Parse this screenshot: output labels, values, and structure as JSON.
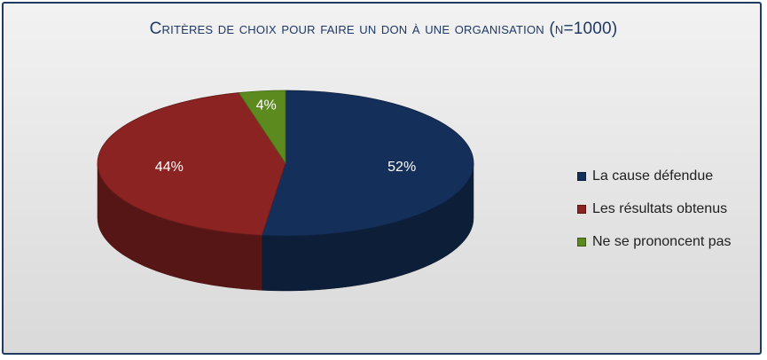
{
  "chart_data": {
    "type": "pie",
    "title": "Critères de choix pour faire un don à une organisation (n=1000)",
    "slices": [
      {
        "label": "La cause défendue",
        "value": 52,
        "display": "52%",
        "color": "#14305a"
      },
      {
        "label": "Les résultats obtenus",
        "value": 44,
        "display": "44%",
        "color": "#8b2323"
      },
      {
        "label": "Ne se prononcent pas",
        "value": 4,
        "display": "4%",
        "color": "#5c8a1e"
      }
    ],
    "legend_position": "right",
    "style": "3d"
  }
}
